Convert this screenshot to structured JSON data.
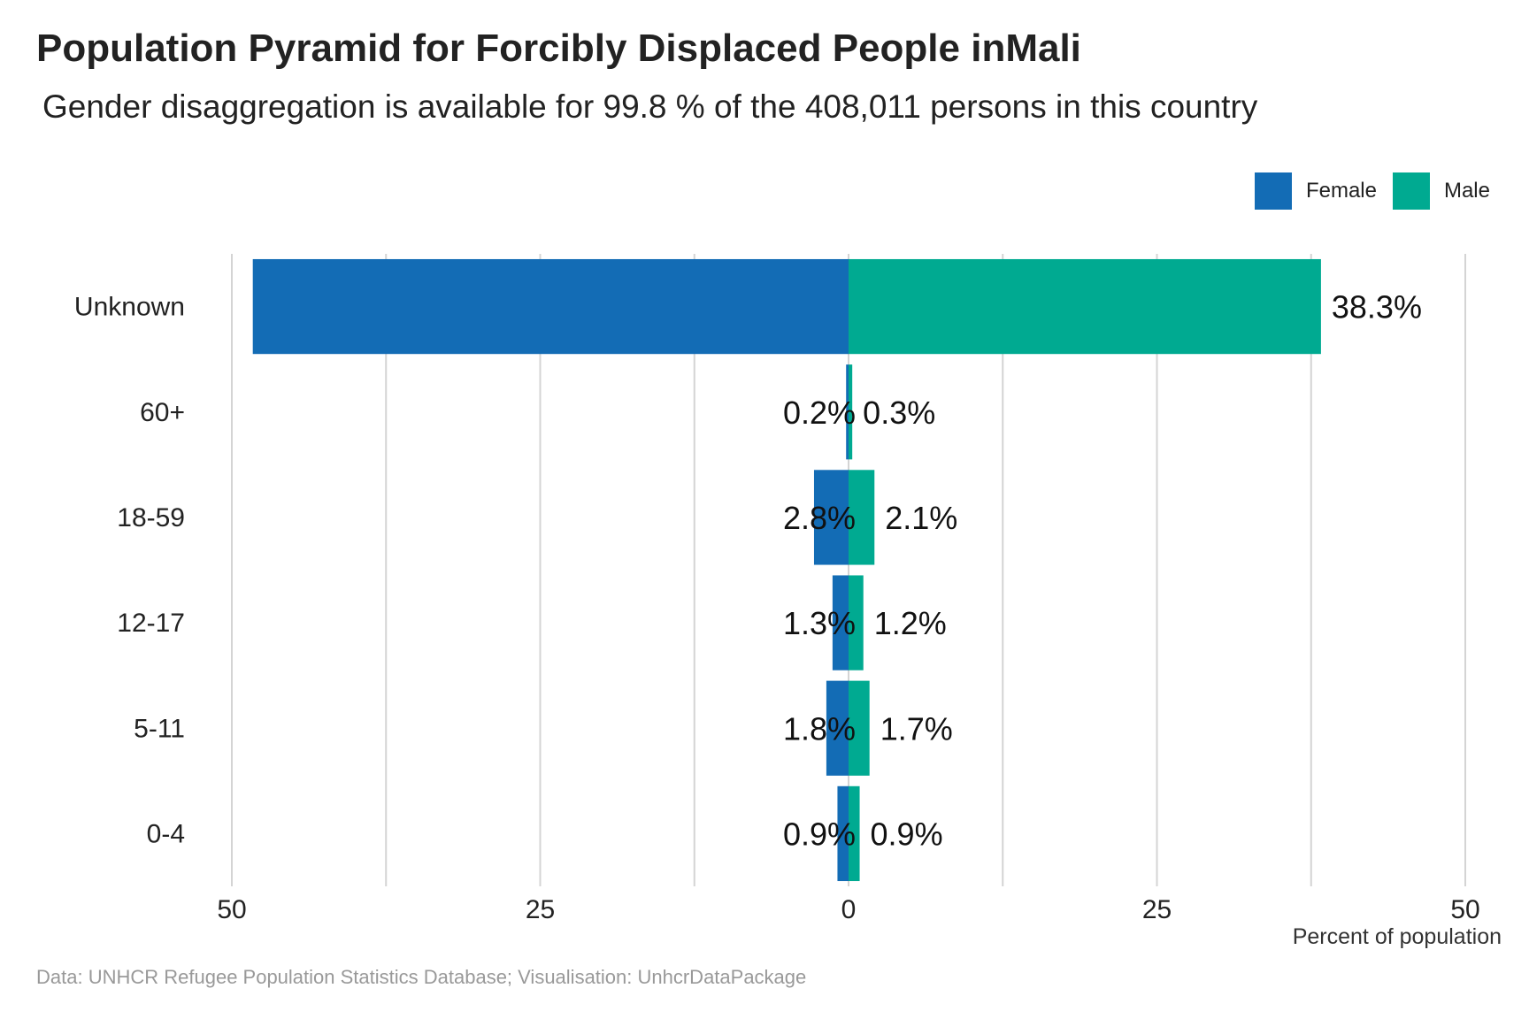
{
  "title": "Population Pyramid for Forcibly Displaced People inMali",
  "subtitle": "Gender disaggregation is available for 99.8 % of the 408,011 persons in this country",
  "caption": "Data: UNHCR Refugee Population Statistics Database; Visualisation: UnhcrDataPackage",
  "legend": [
    {
      "name": "Female",
      "color": "#136CB5"
    },
    {
      "name": "Male",
      "color": "#00AA91"
    }
  ],
  "chart_data": {
    "type": "bar",
    "orientation": "horizontal",
    "categories": [
      "Unknown",
      "60+",
      "18-59",
      "12-17",
      "5-11",
      "0-4"
    ],
    "series": [
      {
        "name": "Female",
        "color": "#136CB5",
        "values": [
          48.3,
          0.2,
          2.8,
          1.3,
          1.8,
          0.9
        ],
        "labels": [
          "",
          "0.2%",
          "2.8%",
          "1.3%",
          "1.8%",
          "0.9%"
        ]
      },
      {
        "name": "Male",
        "color": "#00AA91",
        "values": [
          38.3,
          0.3,
          2.1,
          1.2,
          1.7,
          0.9
        ],
        "labels": [
          "38.3%",
          "0.3%",
          "2.1%",
          "1.2%",
          "1.7%",
          "0.9%"
        ]
      }
    ],
    "xlim": [
      -50,
      50
    ],
    "ticks": [
      -50,
      -25,
      0,
      25,
      50
    ],
    "tick_labels": [
      "50",
      "25",
      "0",
      "25",
      "50"
    ],
    "xlabel": "Percent of population",
    "grid": true,
    "legend_position": "top-right"
  }
}
